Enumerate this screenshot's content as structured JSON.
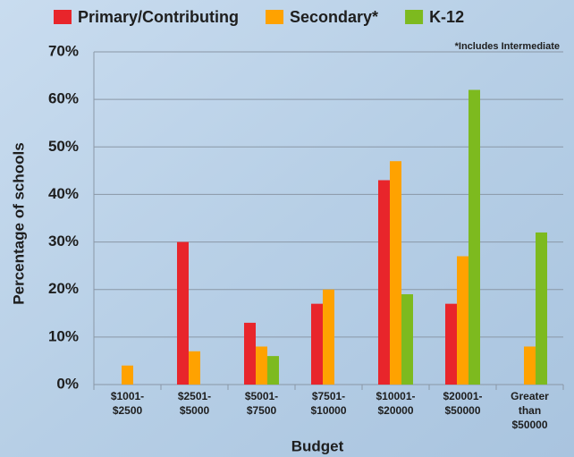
{
  "chart_data": {
    "type": "bar",
    "categories": [
      "$1001-\n$2500",
      "$2501-\n$5000",
      "$5001-\n$7500",
      "$7501-\n$10000",
      "$10001-\n$20000",
      "$20001-\n$50000",
      "Greater\nthan\n$50000"
    ],
    "series": [
      {
        "name": "Primary/Contributing",
        "color": "#e8252b",
        "values": [
          0,
          30,
          13,
          17,
          43,
          17,
          0
        ]
      },
      {
        "name": "Secondary*",
        "color": "#ffa200",
        "values": [
          4,
          7,
          8,
          20,
          47,
          27,
          8
        ]
      },
      {
        "name": "K-12",
        "color": "#7dba1f",
        "values": [
          0,
          0,
          6,
          0,
          19,
          62,
          32
        ]
      }
    ],
    "note": "*Includes Intermediate",
    "x_label": "Budget",
    "y_label": "Percentage of schools",
    "ylim": [
      0,
      70
    ],
    "yticks": [
      {
        "value": 0,
        "label": "0%"
      },
      {
        "value": 10,
        "label": "10%"
      },
      {
        "value": 20,
        "label": "20%"
      },
      {
        "value": 30,
        "label": "30%"
      },
      {
        "value": 40,
        "label": "40%"
      },
      {
        "value": 50,
        "label": "50%"
      },
      {
        "value": 60,
        "label": "60%"
      },
      {
        "value": 70,
        "label": "70%"
      }
    ],
    "grid": true,
    "legend": "top"
  }
}
